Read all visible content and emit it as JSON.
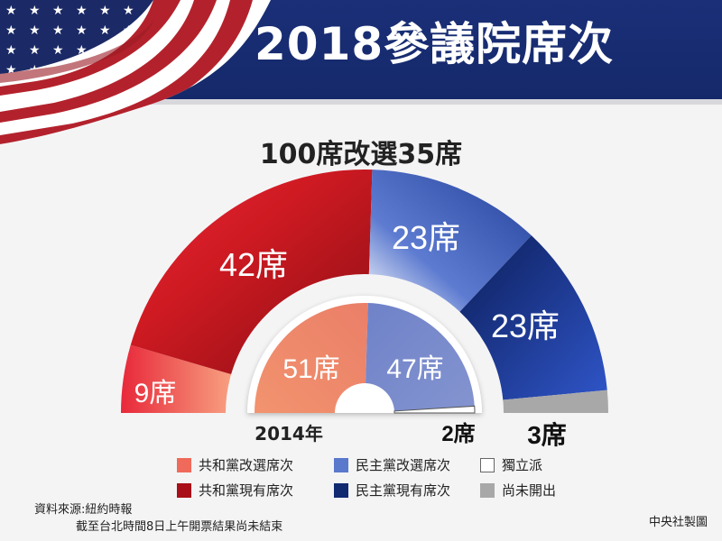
{
  "header": {
    "title": "2018參議院席次"
  },
  "chart_data": {
    "type": "pie",
    "title": "2018參議院席次",
    "subtitle": "100席改選35席",
    "outer": {
      "total": 100,
      "segments": [
        {
          "name": "共和黨改選席次",
          "value": 9,
          "label": "9席",
          "color": "#f08070"
        },
        {
          "name": "共和黨現有席次",
          "value": 42,
          "label": "42席",
          "color": "#c8141e"
        },
        {
          "name": "民主黨改選席次",
          "value": 23,
          "label": "23席",
          "color": "#4a68c4"
        },
        {
          "name": "民主黨現有席次",
          "value": 23,
          "label": "23席",
          "color": "#16307e"
        },
        {
          "name": "尚未開出",
          "value": 3,
          "label": "3席",
          "color": "#a8a8a8"
        }
      ]
    },
    "inner": {
      "year_label": "2014年",
      "total": 100,
      "segments": [
        {
          "name": "共和黨",
          "value": 51,
          "label": "51席",
          "color": "#ef8a6c"
        },
        {
          "name": "民主黨",
          "value": 47,
          "label": "47席",
          "color": "#7385c9"
        },
        {
          "name": "獨立派",
          "value": 2,
          "label": "2席",
          "color": "#ffffff"
        }
      ]
    }
  },
  "legend": [
    {
      "label": "共和黨改選席次",
      "color": "#ef6a5a"
    },
    {
      "label": "民主黨改選席次",
      "color": "#5a78cc"
    },
    {
      "label": "獨立派",
      "color": "#ffffff"
    },
    {
      "label": "共和黨現有席次",
      "color": "#a80f18"
    },
    {
      "label": "民主黨現有席次",
      "color": "#122a70"
    },
    {
      "label": "尚未開出",
      "color": "#a8a8a8"
    }
  ],
  "footer": {
    "source": "資料來源:紐約時報",
    "note": "截至台北時間8日上午開票結果尚未結束",
    "credit": "中央社製圖"
  }
}
